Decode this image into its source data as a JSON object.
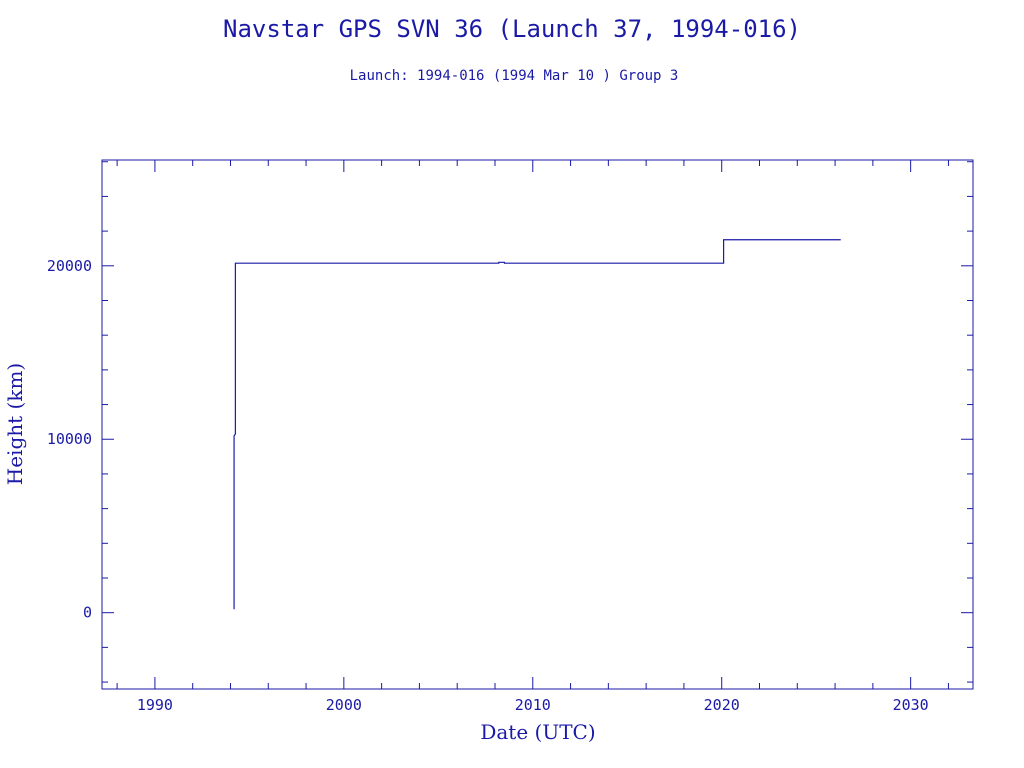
{
  "chart_data": {
    "type": "line",
    "title": "Navstar GPS SVN 36 (Launch 37, 1994-016)",
    "subtitle": "Launch: 1994-016  (1994 Mar 10 )  Group 3",
    "xlabel": "Date (UTC)",
    "ylabel": "Height (km)",
    "xlim": [
      1987.2,
      2033.3
    ],
    "ylim": [
      -4400,
      26100
    ],
    "x_ticks": [
      1990,
      2000,
      2010,
      2020,
      2030
    ],
    "y_ticks": [
      0,
      10000,
      20000
    ],
    "grid": false,
    "color": "#1a1aa6",
    "series": [
      {
        "points": [
          [
            1994.19,
            200
          ],
          [
            1994.19,
            10200
          ],
          [
            1994.26,
            10300
          ],
          [
            1994.26,
            20150
          ],
          [
            2008.2,
            20150
          ],
          [
            2008.2,
            20200
          ],
          [
            2008.5,
            20200
          ],
          [
            2008.5,
            20150
          ],
          [
            2020.1,
            20150
          ],
          [
            2020.1,
            21500
          ],
          [
            2026.3,
            21500
          ]
        ]
      }
    ]
  }
}
